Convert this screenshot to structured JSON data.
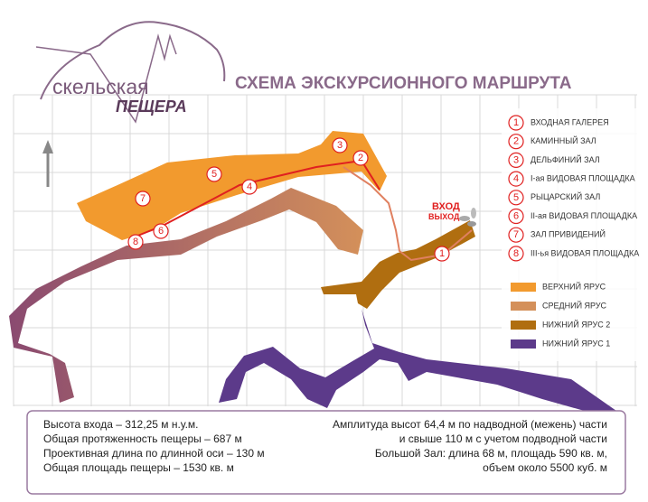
{
  "logo": {
    "line1": "скельская",
    "line2": "ПЕЩЕРА"
  },
  "title": "СХЕМА ЭКСКУРСИОННОГО МАРШРУТА",
  "entrance": {
    "label1": "ВХОД",
    "label2": "ВЫХОД"
  },
  "stops": [
    {
      "number": "1",
      "name": "ВХОДНАЯ ГАЛЕРЕЯ"
    },
    {
      "number": "2",
      "name": "КАМИННЫЙ ЗАЛ"
    },
    {
      "number": "3",
      "name": "ДЕЛЬФИНИЙ ЗАЛ"
    },
    {
      "number": "4",
      "name": "I-ая ВИДОВАЯ ПЛОЩАДКА"
    },
    {
      "number": "5",
      "name": "РЫЦАРСКИЙ ЗАЛ"
    },
    {
      "number": "6",
      "name": "II-ая ВИДОВАЯ ПЛОЩАДКА"
    },
    {
      "number": "7",
      "name": "ЗАЛ ПРИВИДЕНИЙ"
    },
    {
      "number": "8",
      "name": "III-ья ВИДОВАЯ ПЛОЩАДКА"
    }
  ],
  "levels": [
    {
      "name": "ВЕРХНИЙ ЯРУС",
      "color": "#f29a2e"
    },
    {
      "name": "СРЕДНИЙ ЯРУС",
      "color": "#d4905a"
    },
    {
      "name": "НИЖНИЙ ЯРУС 2",
      "color": "#b06e10"
    },
    {
      "name": "НИЖНИЙ ЯРУС 1",
      "color": "#5c3a8a"
    }
  ],
  "info": {
    "left": [
      "Высота входа – 312,25 м н.у.м.",
      "Общая протяженность пещеры – 687 м",
      "Проективная длина по длинной оси – 130 м",
      "Общая площадь пещеры – 1530 кв. м"
    ],
    "right": [
      "Амплитуда высот  64,4 м по надводной (межень) части",
      "и свыше 110 м с учетом подводной части",
      "Большой Зал: длина 68 м, площадь 590 кв. м,",
      "объем около 5500 куб. м"
    ]
  }
}
